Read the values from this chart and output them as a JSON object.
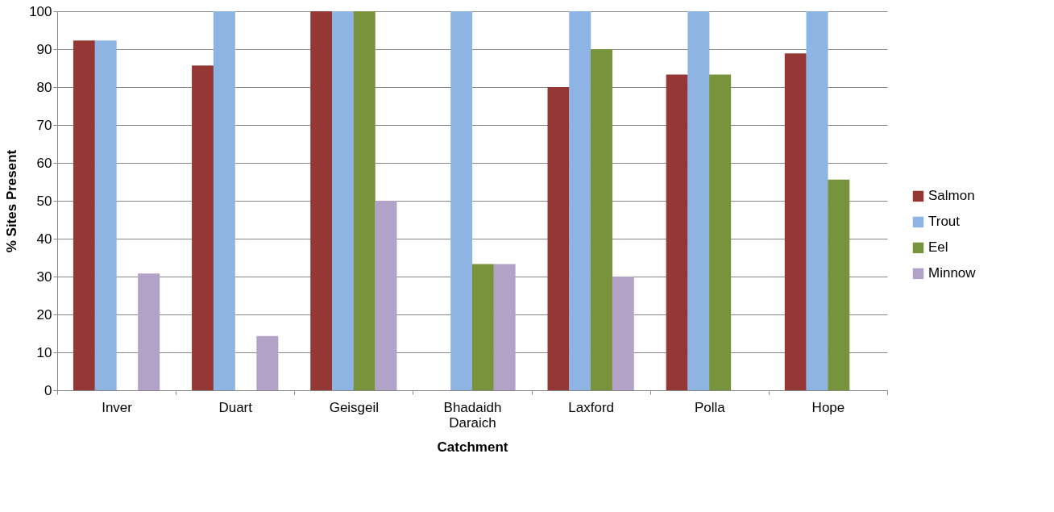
{
  "chart_data": {
    "type": "bar",
    "xlabel": "Catchment",
    "ylabel": "% Sites Present",
    "categories": [
      "Inver",
      "Duart",
      "Geisgeil",
      "Bhadaidh Daraich",
      "Laxford",
      "Polla",
      "Hope"
    ],
    "series": [
      {
        "name": "Salmon",
        "color": "#953735",
        "values": [
          92.3,
          85.7,
          100,
          0,
          80,
          83.3,
          88.9
        ]
      },
      {
        "name": "Trout",
        "color": "#8eb4e3",
        "values": [
          92.3,
          100,
          100,
          100,
          100,
          100,
          100
        ]
      },
      {
        "name": "Eel",
        "color": "#77933c",
        "values": [
          0,
          0,
          100,
          33.3,
          90,
          83.3,
          55.6
        ]
      },
      {
        "name": "Minnow",
        "color": "#b3a2c7",
        "values": [
          30.8,
          14.3,
          50,
          33.3,
          30,
          0,
          0
        ]
      }
    ],
    "ylim": [
      0,
      100
    ],
    "yticks": [
      0,
      10,
      20,
      30,
      40,
      50,
      60,
      70,
      80,
      90,
      100
    ],
    "grid": "y",
    "legend": "right"
  }
}
